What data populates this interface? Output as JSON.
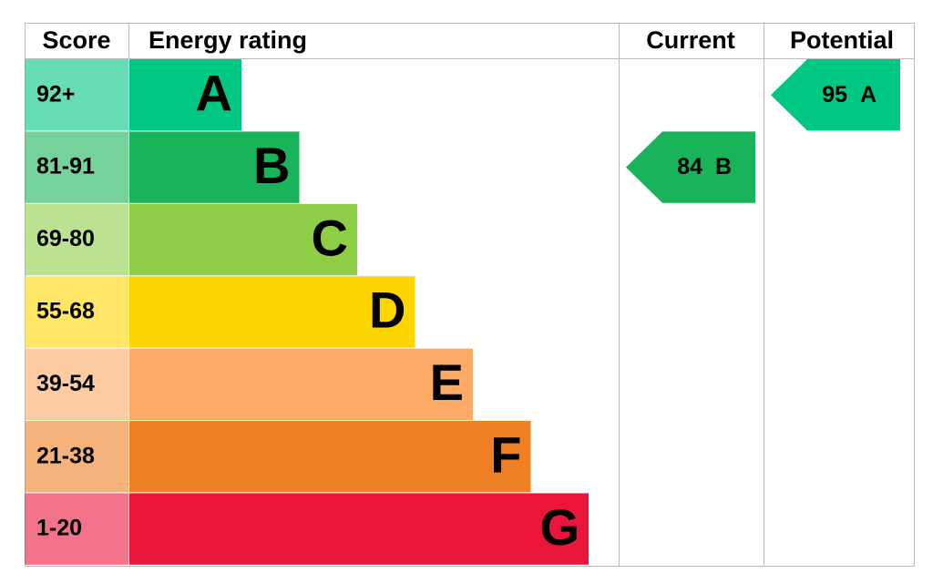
{
  "header": {
    "score": "Score",
    "rating": "Energy rating",
    "current": "Current",
    "potential": "Potential"
  },
  "bands": [
    {
      "score": "92+",
      "letter": "A",
      "color": "#00c781"
    },
    {
      "score": "81-91",
      "letter": "B",
      "color": "#19b459"
    },
    {
      "score": "69-80",
      "letter": "C",
      "color": "#8dce46"
    },
    {
      "score": "55-68",
      "letter": "D",
      "color": "#ffd500"
    },
    {
      "score": "39-54",
      "letter": "E",
      "color": "#fcaa65"
    },
    {
      "score": "21-38",
      "letter": "F",
      "color": "#ef8023"
    },
    {
      "score": "1-20",
      "letter": "G",
      "color": "#e9153b"
    }
  ],
  "current": {
    "value": 84,
    "letter": "B"
  },
  "potential": {
    "value": 95,
    "letter": "A"
  }
}
